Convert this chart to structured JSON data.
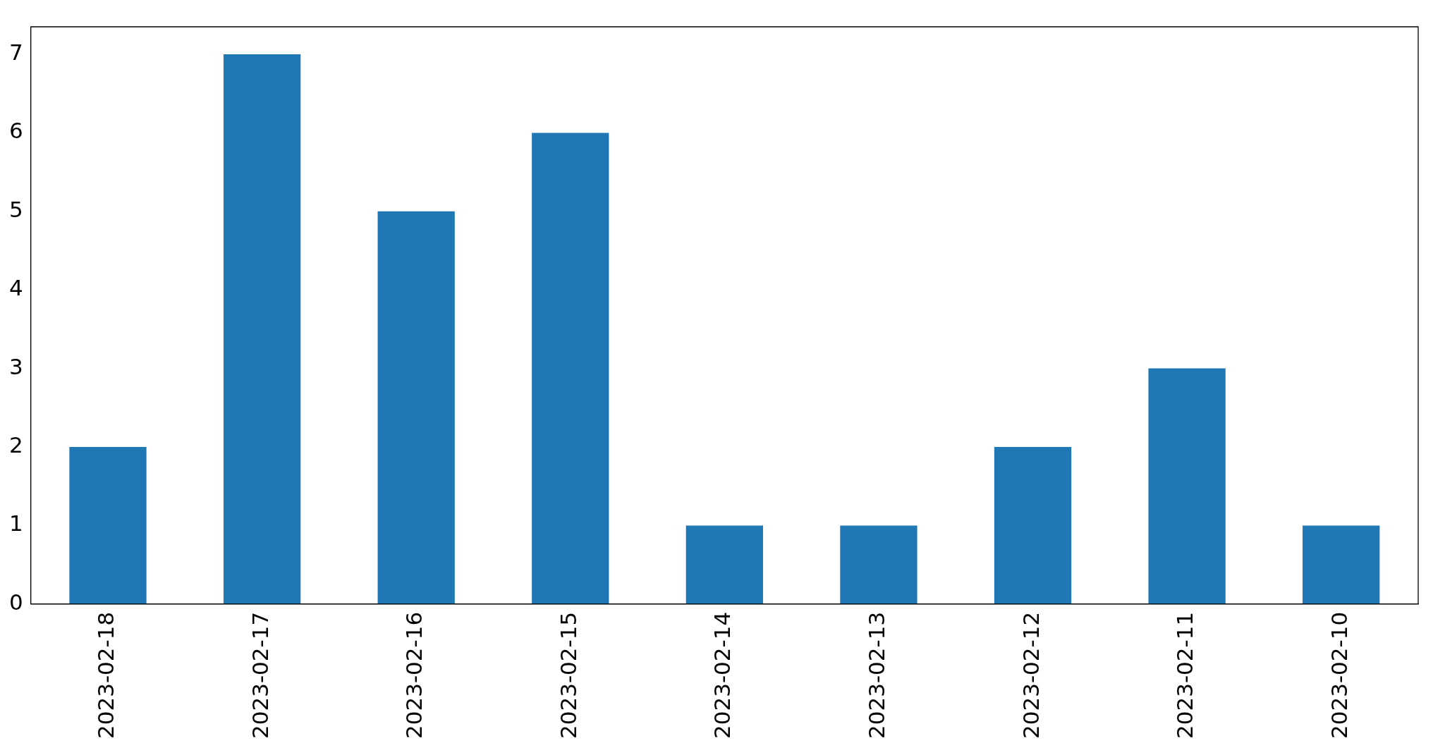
{
  "chart_data": {
    "type": "bar",
    "categories": [
      "2023-02-18",
      "2023-02-17",
      "2023-02-16",
      "2023-02-15",
      "2023-02-14",
      "2023-02-13",
      "2023-02-12",
      "2023-02-11",
      "2023-02-10"
    ],
    "values": [
      2,
      7,
      5,
      6,
      1,
      1,
      2,
      3,
      1
    ],
    "color": "#1f77b4",
    "ylim": [
      0,
      7.35
    ],
    "yticks": [
      0,
      1,
      2,
      3,
      4,
      5,
      6,
      7
    ],
    "grid": false,
    "legend": false
  }
}
